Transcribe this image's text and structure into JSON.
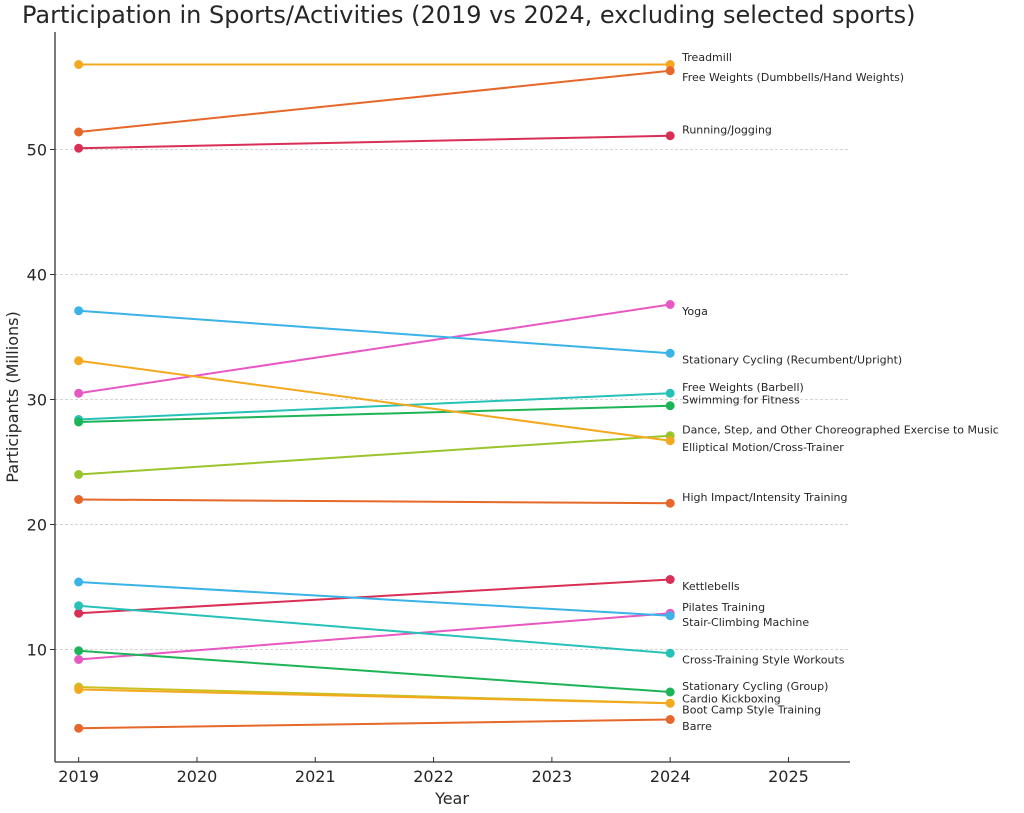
{
  "chart_data": {
    "type": "line",
    "title": "Participation in Sports/Activities (2019 vs 2024, excluding selected sports)",
    "xlabel": "Year",
    "ylabel": "Participants (Millions)",
    "x": [
      2019,
      2024
    ],
    "xlim": [
      2018.8,
      2025.52
    ],
    "ylim": [
      1.0,
      59.4
    ],
    "xticks": [
      "2019",
      "2020",
      "2021",
      "2022",
      "2023",
      "2024",
      "2025"
    ],
    "yticks": [
      "10",
      "20",
      "30",
      "40",
      "50"
    ],
    "grid": "horizontal dashed",
    "legend": "inline labels at right of 2024 points",
    "series": [
      {
        "name": "Treadmill",
        "values": [
          56.8,
          56.8
        ],
        "color": "#f4a81d"
      },
      {
        "name": "Free Weights (Dumbbells/Hand Weights)",
        "values": [
          51.4,
          56.3
        ],
        "color": "#e5672a"
      },
      {
        "name": "Running/Jogging",
        "values": [
          50.1,
          51.1
        ],
        "color": "#d92f55"
      },
      {
        "name": "Yoga",
        "values": [
          30.5,
          37.6
        ],
        "color": "#e758c3"
      },
      {
        "name": "Stationary Cycling (Recumbent/Upright)",
        "values": [
          37.1,
          33.7
        ],
        "color": "#3ab3e8"
      },
      {
        "name": "Free Weights (Barbell)",
        "values": [
          28.4,
          30.5
        ],
        "color": "#26c1b7"
      },
      {
        "name": "Swimming for Fitness",
        "values": [
          28.2,
          29.5
        ],
        "color": "#1db458"
      },
      {
        "name": "Dance, Step, and Other Choreographed Exercise to Music",
        "values": [
          24.0,
          27.1
        ],
        "color": "#99c42b"
      },
      {
        "name": "Elliptical Motion/Cross-Trainer",
        "values": [
          33.1,
          26.7
        ],
        "color": "#f4a81d"
      },
      {
        "name": "High Impact/Intensity Training",
        "values": [
          22.0,
          21.7
        ],
        "color": "#e5672a"
      },
      {
        "name": "Kettlebells",
        "values": [
          12.9,
          15.6
        ],
        "color": "#d92f55"
      },
      {
        "name": "Pilates Training",
        "values": [
          9.2,
          12.9
        ],
        "color": "#e758c3"
      },
      {
        "name": "Stair-Climbing Machine",
        "values": [
          15.4,
          12.7
        ],
        "color": "#3ab3e8"
      },
      {
        "name": "Cross-Training Style Workouts",
        "values": [
          13.5,
          9.7
        ],
        "color": "#26c1b7"
      },
      {
        "name": "Stationary Cycling (Group)",
        "values": [
          9.9,
          6.6
        ],
        "color": "#1db458"
      },
      {
        "name": "Cardio Kickboxing",
        "values": [
          7.0,
          5.7
        ],
        "color": "#c9c021"
      },
      {
        "name": "Boot Camp Style Training",
        "values": [
          6.8,
          5.7
        ],
        "color": "#f4a81d"
      },
      {
        "name": "Barre",
        "values": [
          3.7,
          4.4
        ],
        "color": "#e5672a"
      }
    ],
    "label_values": [
      {
        "name": "Treadmill",
        "y": 57.4
      },
      {
        "name": "Free Weights (Dumbbells/Hand Weights)",
        "y": 55.8
      },
      {
        "name": "Running/Jogging",
        "y": 51.6
      },
      {
        "name": "Yoga",
        "y": 37.1
      },
      {
        "name": "Stationary Cycling (Recumbent/Upright)",
        "y": 33.2
      },
      {
        "name": "Free Weights (Barbell)",
        "y": 31.0
      },
      {
        "name": "Swimming for Fitness",
        "y": 30.0
      },
      {
        "name": "Dance, Step, and Other Choreographed Exercise to Music",
        "y": 27.6
      },
      {
        "name": "Elliptical Motion/Cross-Trainer",
        "y": 26.2
      },
      {
        "name": "High Impact/Intensity Training",
        "y": 22.2
      },
      {
        "name": "Kettlebells",
        "y": 15.1
      },
      {
        "name": "Pilates Training",
        "y": 13.4
      },
      {
        "name": "Stair-Climbing Machine",
        "y": 12.2
      },
      {
        "name": "Cross-Training Style Workouts",
        "y": 9.2
      },
      {
        "name": "Stationary Cycling (Group)",
        "y": 7.1
      },
      {
        "name": "Cardio Kickboxing",
        "y": 6.1
      },
      {
        "name": "Boot Camp Style Training",
        "y": 5.2
      },
      {
        "name": "Barre",
        "y": 3.9
      }
    ]
  }
}
